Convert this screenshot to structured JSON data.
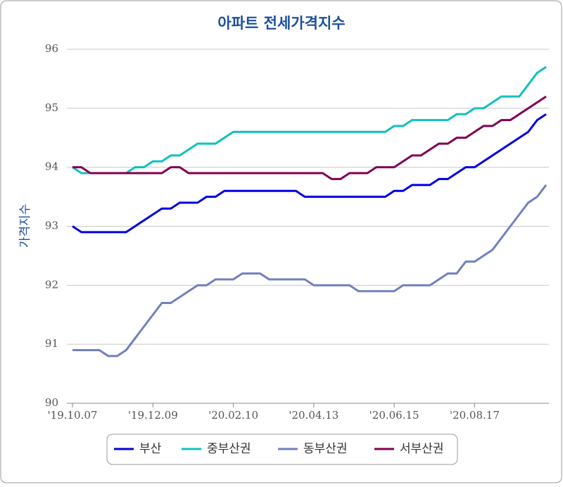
{
  "chart_data": {
    "type": "line",
    "title": "아파트 전세가격지수",
    "y_label": "가격지수",
    "categories": [
      "'19.10.07",
      null,
      null,
      null,
      null,
      null,
      null,
      null,
      null,
      "'19.12.09",
      null,
      null,
      null,
      null,
      null,
      null,
      null,
      null,
      "'20.02.10",
      null,
      null,
      null,
      null,
      null,
      null,
      null,
      null,
      "'20.04.13",
      null,
      null,
      null,
      null,
      null,
      null,
      null,
      null,
      "'20.06.15",
      null,
      null,
      null,
      null,
      null,
      null,
      null,
      null,
      "'20.08.17",
      null,
      null,
      null,
      null,
      null,
      null,
      null,
      null
    ],
    "series": [
      {
        "name": "부산",
        "color": "#0000e0",
        "values": [
          93.0,
          92.9,
          92.9,
          92.9,
          92.9,
          92.9,
          92.9,
          93.0,
          93.1,
          93.2,
          93.3,
          93.3,
          93.4,
          93.4,
          93.4,
          93.5,
          93.5,
          93.6,
          93.6,
          93.6,
          93.6,
          93.6,
          93.6,
          93.6,
          93.6,
          93.6,
          93.5,
          93.5,
          93.5,
          93.5,
          93.5,
          93.5,
          93.5,
          93.5,
          93.5,
          93.5,
          93.6,
          93.6,
          93.7,
          93.7,
          93.7,
          93.8,
          93.8,
          93.9,
          94.0,
          94.0,
          94.1,
          94.2,
          94.3,
          94.4,
          94.5,
          94.6,
          94.8,
          94.9
        ]
      },
      {
        "name": "중부산권",
        "color": "#10c0c0",
        "values": [
          94.0,
          93.9,
          93.9,
          93.9,
          93.9,
          93.9,
          93.9,
          94.0,
          94.0,
          94.1,
          94.1,
          94.2,
          94.2,
          94.3,
          94.4,
          94.4,
          94.4,
          94.5,
          94.6,
          94.6,
          94.6,
          94.6,
          94.6,
          94.6,
          94.6,
          94.6,
          94.6,
          94.6,
          94.6,
          94.6,
          94.6,
          94.6,
          94.6,
          94.6,
          94.6,
          94.6,
          94.7,
          94.7,
          94.8,
          94.8,
          94.8,
          94.8,
          94.8,
          94.9,
          94.9,
          95.0,
          95.0,
          95.1,
          95.2,
          95.2,
          95.2,
          95.4,
          95.6,
          95.7
        ]
      },
      {
        "name": "동부산권",
        "color": "#7080c0",
        "values": [
          90.9,
          90.9,
          90.9,
          90.9,
          90.8,
          90.8,
          90.9,
          91.1,
          91.3,
          91.5,
          91.7,
          91.7,
          91.8,
          91.9,
          92.0,
          92.0,
          92.1,
          92.1,
          92.1,
          92.2,
          92.2,
          92.2,
          92.1,
          92.1,
          92.1,
          92.1,
          92.1,
          92.0,
          92.0,
          92.0,
          92.0,
          92.0,
          91.9,
          91.9,
          91.9,
          91.9,
          91.9,
          92.0,
          92.0,
          92.0,
          92.0,
          92.1,
          92.2,
          92.2,
          92.4,
          92.4,
          92.5,
          92.6,
          92.8,
          93.0,
          93.2,
          93.4,
          93.5,
          93.7
        ]
      },
      {
        "name": "서부산권",
        "color": "#800050",
        "values": [
          94.0,
          94.0,
          93.9,
          93.9,
          93.9,
          93.9,
          93.9,
          93.9,
          93.9,
          93.9,
          93.9,
          94.0,
          94.0,
          93.9,
          93.9,
          93.9,
          93.9,
          93.9,
          93.9,
          93.9,
          93.9,
          93.9,
          93.9,
          93.9,
          93.9,
          93.9,
          93.9,
          93.9,
          93.9,
          93.8,
          93.8,
          93.9,
          93.9,
          93.9,
          94.0,
          94.0,
          94.0,
          94.1,
          94.2,
          94.2,
          94.3,
          94.4,
          94.4,
          94.5,
          94.5,
          94.6,
          94.7,
          94.7,
          94.8,
          94.8,
          94.9,
          95.0,
          95.1,
          95.2
        ]
      }
    ],
    "ylim": [
      90,
      96
    ],
    "yticks": [
      90,
      91,
      92,
      93,
      94,
      95,
      96
    ],
    "grid": true,
    "legend": "bottom"
  }
}
